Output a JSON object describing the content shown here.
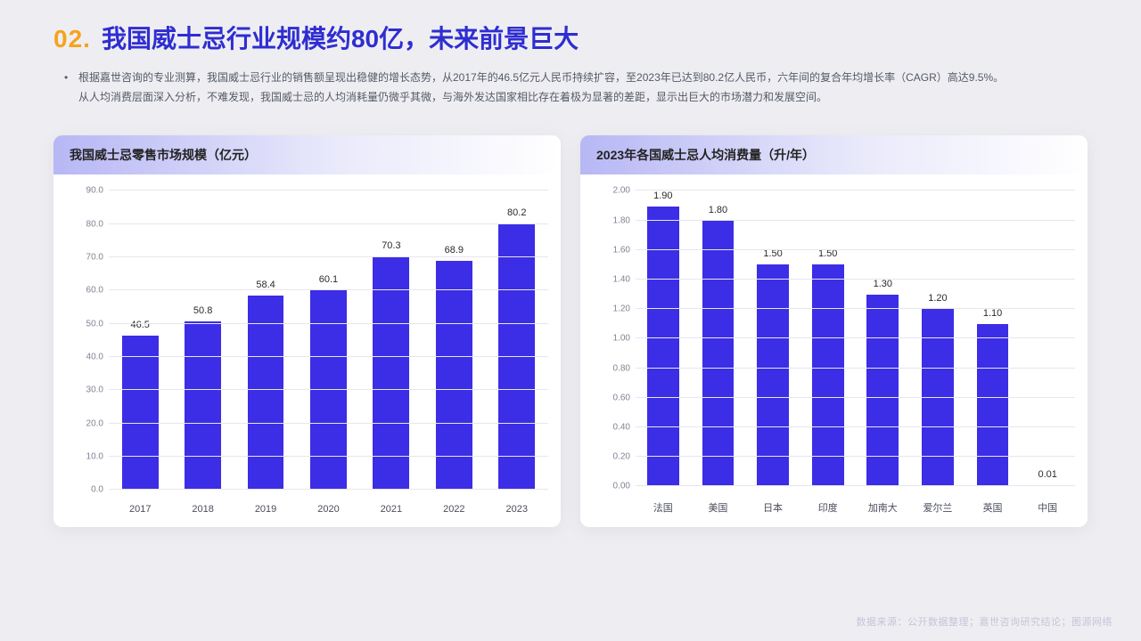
{
  "header": {
    "section_number": "02.",
    "title": "我国威士忌行业规模约80亿，未来前景巨大",
    "desc_line1": "根据嘉世咨询的专业测算，我国威士忌行业的销售额呈现出稳健的增长态势，从2017年的46.5亿元人民币持续扩容，至2023年已达到80.2亿人民币，六年间的复合年均增长率（CAGR）高达9.5%。",
    "desc_line2": "从人均消费层面深入分析，不难发现，我国威士忌的人均消耗量仍微乎其微，与海外发达国家相比存在着极为显著的差距，显示出巨大的市场潜力和发展空间。"
  },
  "chart_left": {
    "type": "bar",
    "title": "我国威士忌零售市场规模（亿元）",
    "categories": [
      "2017",
      "2018",
      "2019",
      "2020",
      "2021",
      "2022",
      "2023"
    ],
    "values": [
      46.5,
      50.8,
      58.4,
      60.1,
      70.3,
      68.9,
      80.2
    ],
    "value_labels": [
      "46.5",
      "50.8",
      "58.4",
      "60.1",
      "70.3",
      "68.9",
      "80.2"
    ],
    "ylim": [
      0.0,
      90.0
    ],
    "ytick_step": 10.0,
    "y_decimals": 1,
    "bar_color": "#3c2de6",
    "grid_color": "#e6e6ee",
    "background_color": "#ffffff",
    "title_fontsize": 14,
    "label_fontsize": 11,
    "tick_fontsize": 10
  },
  "chart_right": {
    "type": "bar",
    "title": "2023年各国威士忌人均消费量（升/年）",
    "categories": [
      "法国",
      "美国",
      "日本",
      "印度",
      "加南大",
      "爱尔兰",
      "英国",
      "中国"
    ],
    "values": [
      1.9,
      1.8,
      1.5,
      1.5,
      1.3,
      1.2,
      1.1,
      0.01
    ],
    "value_labels": [
      "1.90",
      "1.80",
      "1.50",
      "1.50",
      "1.30",
      "1.20",
      "1.10",
      "0.01"
    ],
    "ylim": [
      0.0,
      2.0
    ],
    "ytick_step": 0.2,
    "y_decimals": 2,
    "bar_color": "#3c2de6",
    "grid_color": "#e6e6ee",
    "background_color": "#ffffff",
    "title_fontsize": 14,
    "label_fontsize": 11,
    "tick_fontsize": 10
  },
  "footer": {
    "text": "数据来源：公开数据整理；嘉世咨询研究结论；图源网络"
  },
  "palette": {
    "page_bg": "#eeeef2",
    "card_bg": "#ffffff",
    "accent_orange": "#f6a31c",
    "accent_blue": "#2f2dd1",
    "bar_fill": "#3c2de6",
    "text_muted": "#808494",
    "grid": "#e6e6ee"
  }
}
